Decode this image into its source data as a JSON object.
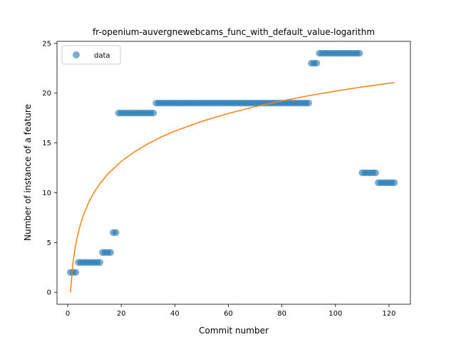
{
  "chart_data": {
    "type": "scatter",
    "title": "fr-openium-auvergnewebcams_func_with_default_value-logarithm",
    "xlabel": "Commit number",
    "ylabel": "Number of instance of a feature",
    "xlim": [
      -4,
      128
    ],
    "ylim": [
      -1.2,
      25.2
    ],
    "xticks": [
      0,
      20,
      40,
      60,
      80,
      100,
      120
    ],
    "yticks": [
      0,
      5,
      10,
      15,
      20,
      25
    ],
    "grid": false,
    "legend": {
      "placement": "top-left",
      "entries": [
        "data"
      ]
    },
    "colors": {
      "data": "#1f77b4",
      "fit": "#ff7f0e"
    },
    "series": [
      {
        "name": "data",
        "kind": "scatter",
        "x": [
          1,
          2,
          3,
          4,
          5,
          6,
          7,
          8,
          9,
          10,
          11,
          12,
          13,
          14,
          15,
          16,
          17,
          18,
          19,
          20,
          21,
          22,
          23,
          24,
          25,
          26,
          27,
          28,
          29,
          30,
          31,
          32,
          33,
          34,
          35,
          36,
          37,
          38,
          39,
          40,
          41,
          42,
          43,
          44,
          45,
          46,
          47,
          48,
          49,
          50,
          51,
          52,
          53,
          54,
          55,
          56,
          57,
          58,
          59,
          60,
          61,
          62,
          63,
          64,
          65,
          66,
          67,
          68,
          69,
          70,
          71,
          72,
          73,
          74,
          75,
          76,
          77,
          78,
          79,
          80,
          81,
          82,
          83,
          84,
          85,
          86,
          87,
          88,
          89,
          90,
          91,
          92,
          93,
          94,
          95,
          96,
          97,
          98,
          99,
          100,
          101,
          102,
          103,
          104,
          105,
          106,
          107,
          108,
          109,
          110,
          111,
          112,
          113,
          114,
          115,
          116,
          117,
          118,
          119,
          120,
          121,
          122
        ],
        "y": [
          2,
          2,
          2,
          3,
          3,
          3,
          3,
          3,
          3,
          3,
          3,
          3,
          4,
          4,
          4,
          4,
          6,
          6,
          18,
          18,
          18,
          18,
          18,
          18,
          18,
          18,
          18,
          18,
          18,
          18,
          18,
          18,
          19,
          19,
          19,
          19,
          19,
          19,
          19,
          19,
          19,
          19,
          19,
          19,
          19,
          19,
          19,
          19,
          19,
          19,
          19,
          19,
          19,
          19,
          19,
          19,
          19,
          19,
          19,
          19,
          19,
          19,
          19,
          19,
          19,
          19,
          19,
          19,
          19,
          19,
          19,
          19,
          19,
          19,
          19,
          19,
          19,
          19,
          19,
          19,
          19,
          19,
          19,
          19,
          19,
          19,
          19,
          19,
          19,
          19,
          23,
          23,
          23,
          24,
          24,
          24,
          24,
          24,
          24,
          24,
          24,
          24,
          24,
          24,
          24,
          24,
          24,
          24,
          24,
          12,
          12,
          12,
          12,
          12,
          12,
          11,
          11,
          11,
          11,
          11,
          11,
          11
        ]
      },
      {
        "kind": "line",
        "model": "logarithmic fit",
        "x": [
          1,
          2,
          3,
          4,
          5,
          6,
          8,
          10,
          12,
          15,
          20,
          25,
          30,
          35,
          40,
          50,
          60,
          70,
          80,
          90,
          100,
          110,
          122
        ],
        "y": [
          0,
          3.04,
          4.82,
          6.08,
          7.06,
          7.86,
          9.12,
          10.1,
          10.9,
          11.88,
          13.14,
          14.12,
          14.92,
          15.6,
          16.18,
          17.16,
          17.96,
          18.64,
          19.22,
          19.74,
          20.2,
          20.62,
          21.06
        ]
      }
    ]
  }
}
